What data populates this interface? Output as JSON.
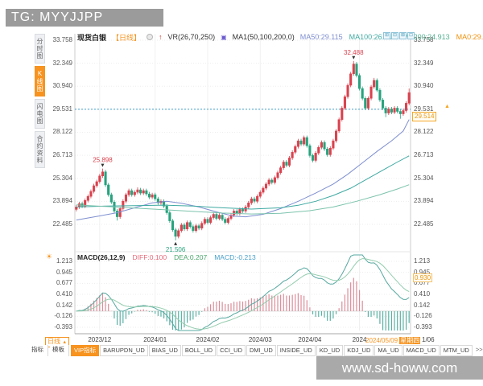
{
  "watermark_top": "TG: MYYJJPP",
  "watermark_bottom": "www.sd-howw.com",
  "sidebar": {
    "items": [
      {
        "label": "分时图",
        "active": false
      },
      {
        "label": "K线图",
        "active": true
      },
      {
        "label": "闪电图",
        "active": false
      },
      {
        "label": "合约资料",
        "active": false
      }
    ]
  },
  "header": {
    "symbol": "现货白银",
    "period": "【日线】",
    "vr_label": "VR(26,70,250)",
    "ma_group_label": "MA1(50,100,200,0)",
    "ma_values": [
      {
        "label": "MA50:29.115",
        "color": "#7e8fd0"
      },
      {
        "label": "MA100:26.715",
        "color": "#3fa9a2"
      },
      {
        "label": "MA200:24.913",
        "color": "#55b291"
      },
      {
        "label": "MA0:29.",
        "color": "#f0920f"
      }
    ]
  },
  "window_icons": [
    "⊞",
    "⊟",
    "⊠",
    "⊡"
  ],
  "price_panel": {
    "axis_labels": [
      "33.758",
      "32.349",
      "30.940",
      "29.531",
      "28.122",
      "26.713",
      "25.304",
      "23.894",
      "22.485"
    ],
    "axis_max": 33.758,
    "axis_min": 22.485,
    "ref_line": 29.531,
    "price_tag": "29.514",
    "pin_icon": "▲",
    "annotations": [
      {
        "text": "25.898",
        "index": 9,
        "type": "high"
      },
      {
        "text": "21.506",
        "index": 34,
        "type": "low"
      },
      {
        "text": "32.488",
        "index": 95,
        "type": "high"
      }
    ]
  },
  "macd_panel": {
    "title": "MACD(26,12,9)",
    "diff_label": "DIFF:0.100",
    "dea_label": "DEA:0.207",
    "macd_label": "MACD:-0.213",
    "settings_icon": "☀",
    "axis_labels": [
      "1.213",
      "0.945",
      "0.677",
      "0.410",
      "0.142",
      "-0.126",
      "-0.393"
    ],
    "axis_max": 1.213,
    "axis_min": -0.393,
    "value_tag": "0.930"
  },
  "xaxis": {
    "cursor_date": "2024/05/09",
    "cursor_weekday": "星期四",
    "suffix": "1/06"
  },
  "period_box": {
    "label": "日线",
    "arrow": "▲"
  },
  "bottom_tabs": [
    {
      "label": "指标",
      "style": "plain"
    },
    {
      "label": "模板",
      "style": "plain"
    },
    {
      "label": "VIP指标",
      "style": "active"
    },
    {
      "label": "BARUPDN_UD",
      "style": "cell"
    },
    {
      "label": "BIAS_UD",
      "style": "cell"
    },
    {
      "label": "BOLL_UD",
      "style": "cell"
    },
    {
      "label": "CCI_UD",
      "style": "cell"
    },
    {
      "label": "DMI_UD",
      "style": "cell"
    },
    {
      "label": "INSIDE_UD",
      "style": "cell"
    },
    {
      "label": "KD_UD",
      "style": "cell"
    },
    {
      "label": "KDJ_UD",
      "style": "cell"
    },
    {
      "label": "MA_UD",
      "style": "cell"
    },
    {
      "label": "MACD_UD",
      "style": "cell"
    },
    {
      "label": "MTM_UD",
      "style": "cell"
    },
    {
      "label": ">>",
      "style": "more"
    }
  ],
  "colors": {
    "accent": "#f7931e",
    "up": "#d9424e",
    "down": "#27a27d",
    "ma50": "#7e8fd0",
    "ma100": "#3fa9a2",
    "ma200": "#7cc3ad",
    "ref_line": "#3e9dc8",
    "grid": "#ededed",
    "diff_line": "#57a8a0",
    "dea_line": "#93ccae",
    "hist_pos": "#dc8d99",
    "hist_neg": "#5bb1a4",
    "tag_orange": "#f5a623"
  },
  "chart_data": {
    "type": "candlestick",
    "title": "现货白银 日线",
    "price_range": [
      22.485,
      33.758
    ],
    "months": [
      {
        "label": "2023/12",
        "index": 8
      },
      {
        "label": "2024/01",
        "index": 27
      },
      {
        "label": "2024/02",
        "index": 45
      },
      {
        "label": "2024/03",
        "index": 63
      },
      {
        "label": "2024/04",
        "index": 80
      },
      {
        "label": "2024",
        "index": 97
      }
    ],
    "candles": [
      [
        23.4,
        23.67,
        23.28,
        23.55
      ],
      [
        23.55,
        23.87,
        23.43,
        23.75
      ],
      [
        23.75,
        23.87,
        23.48,
        23.6
      ],
      [
        23.6,
        24.07,
        23.48,
        23.95
      ],
      [
        23.95,
        24.32,
        23.83,
        24.2
      ],
      [
        24.2,
        24.62,
        24.08,
        24.5
      ],
      [
        24.5,
        24.97,
        24.38,
        24.85
      ],
      [
        24.85,
        25.22,
        24.73,
        25.1
      ],
      [
        25.1,
        25.57,
        24.98,
        25.45
      ],
      [
        25.45,
        25.898,
        25.33,
        25.7
      ],
      [
        25.7,
        25.82,
        24.78,
        24.9
      ],
      [
        24.9,
        25.02,
        24.18,
        24.3
      ],
      [
        24.3,
        24.42,
        23.73,
        23.85
      ],
      [
        23.85,
        23.97,
        23.18,
        23.3
      ],
      [
        23.3,
        23.42,
        22.72,
        22.95
      ],
      [
        22.95,
        23.57,
        22.83,
        23.45
      ],
      [
        23.45,
        24.02,
        23.33,
        23.9
      ],
      [
        23.9,
        24.42,
        23.78,
        24.3
      ],
      [
        24.3,
        24.67,
        24.18,
        24.55
      ],
      [
        24.55,
        24.67,
        24.18,
        24.3
      ],
      [
        24.3,
        24.57,
        24.18,
        24.45
      ],
      [
        24.45,
        24.75,
        24.33,
        24.6
      ],
      [
        24.6,
        24.72,
        24.28,
        24.4
      ],
      [
        24.4,
        24.67,
        24.28,
        24.55
      ],
      [
        24.55,
        24.67,
        24.23,
        24.35
      ],
      [
        24.35,
        24.47,
        24.03,
        24.15
      ],
      [
        24.15,
        24.42,
        24.03,
        24.3
      ],
      [
        24.3,
        24.42,
        23.93,
        24.05
      ],
      [
        24.05,
        24.17,
        23.68,
        23.8
      ],
      [
        23.8,
        24.02,
        23.68,
        23.9
      ],
      [
        23.9,
        24.02,
        23.48,
        23.6
      ],
      [
        23.6,
        23.72,
        23.08,
        23.2
      ],
      [
        23.2,
        23.32,
        22.58,
        22.7
      ],
      [
        22.7,
        22.82,
        22.03,
        22.15
      ],
      [
        22.15,
        22.27,
        21.506,
        21.75
      ],
      [
        21.75,
        22.22,
        21.63,
        22.1
      ],
      [
        22.1,
        22.57,
        21.98,
        22.45
      ],
      [
        22.45,
        22.57,
        22.08,
        22.2
      ],
      [
        22.2,
        22.72,
        22.08,
        22.6
      ],
      [
        22.6,
        22.72,
        22.23,
        22.35
      ],
      [
        22.35,
        22.47,
        21.98,
        22.1
      ],
      [
        22.1,
        22.52,
        21.98,
        22.4
      ],
      [
        22.4,
        22.52,
        22.13,
        22.25
      ],
      [
        22.25,
        22.67,
        22.13,
        22.55
      ],
      [
        22.55,
        22.92,
        22.43,
        22.8
      ],
      [
        22.8,
        22.92,
        22.48,
        22.6
      ],
      [
        22.6,
        23.02,
        22.48,
        22.9
      ],
      [
        22.9,
        23.22,
        22.78,
        23.1
      ],
      [
        23.1,
        23.22,
        22.73,
        22.85
      ],
      [
        22.85,
        23.17,
        22.73,
        23.05
      ],
      [
        23.05,
        23.17,
        22.68,
        22.8
      ],
      [
        22.8,
        22.92,
        22.48,
        22.6
      ],
      [
        22.6,
        22.97,
        22.48,
        22.85
      ],
      [
        22.85,
        23.17,
        22.73,
        23.05
      ],
      [
        23.05,
        23.42,
        22.93,
        23.3
      ],
      [
        23.3,
        23.42,
        23.03,
        23.15
      ],
      [
        23.15,
        23.52,
        23.03,
        23.4
      ],
      [
        23.4,
        23.52,
        23.18,
        23.3
      ],
      [
        23.3,
        23.67,
        23.18,
        23.55
      ],
      [
        23.55,
        23.92,
        23.43,
        23.8
      ],
      [
        23.8,
        24.17,
        23.68,
        24.05
      ],
      [
        24.05,
        24.17,
        23.78,
        23.9
      ],
      [
        23.9,
        24.32,
        23.78,
        24.2
      ],
      [
        24.2,
        24.57,
        24.08,
        24.45
      ],
      [
        24.45,
        24.82,
        24.33,
        24.7
      ],
      [
        24.7,
        25.07,
        24.58,
        24.95
      ],
      [
        24.95,
        25.32,
        24.83,
        25.2
      ],
      [
        25.2,
        25.32,
        24.93,
        25.05
      ],
      [
        25.05,
        25.47,
        24.93,
        25.35
      ],
      [
        25.35,
        25.77,
        25.23,
        25.65
      ],
      [
        25.65,
        26.07,
        25.53,
        25.95
      ],
      [
        25.95,
        26.42,
        25.83,
        26.3
      ],
      [
        26.3,
        26.42,
        25.98,
        26.1
      ],
      [
        26.1,
        26.67,
        25.98,
        26.55
      ],
      [
        26.55,
        27.02,
        26.43,
        26.9
      ],
      [
        26.9,
        27.37,
        26.78,
        27.25
      ],
      [
        27.25,
        27.72,
        27.13,
        27.6
      ],
      [
        27.6,
        27.72,
        27.28,
        27.4
      ],
      [
        27.4,
        27.92,
        27.28,
        27.8
      ],
      [
        27.8,
        27.92,
        27.18,
        27.3
      ],
      [
        27.3,
        27.42,
        26.58,
        26.7
      ],
      [
        26.7,
        26.82,
        26.28,
        26.4
      ],
      [
        26.4,
        26.97,
        26.28,
        26.85
      ],
      [
        26.85,
        27.32,
        26.73,
        27.2
      ],
      [
        27.2,
        27.62,
        27.08,
        27.5
      ],
      [
        27.5,
        27.62,
        26.98,
        27.1
      ],
      [
        27.1,
        27.22,
        26.63,
        26.75
      ],
      [
        26.75,
        27.27,
        26.63,
        27.15
      ],
      [
        27.15,
        27.72,
        27.03,
        27.6
      ],
      [
        27.6,
        28.32,
        27.48,
        28.2
      ],
      [
        28.2,
        29.02,
        28.08,
        28.9
      ],
      [
        28.9,
        29.72,
        28.78,
        29.6
      ],
      [
        29.6,
        30.42,
        29.48,
        30.3
      ],
      [
        30.3,
        31.12,
        30.18,
        31.0
      ],
      [
        31.0,
        31.82,
        30.88,
        31.7
      ],
      [
        31.7,
        32.488,
        31.58,
        32.3
      ],
      [
        32.3,
        32.42,
        31.48,
        31.6
      ],
      [
        31.6,
        31.72,
        30.68,
        30.8
      ],
      [
        30.8,
        30.92,
        30.08,
        30.2
      ],
      [
        30.2,
        30.32,
        29.48,
        29.6
      ],
      [
        29.6,
        30.32,
        29.48,
        30.2
      ],
      [
        30.2,
        31.02,
        30.08,
        30.9
      ],
      [
        30.9,
        31.45,
        30.78,
        31.3
      ],
      [
        31.3,
        31.42,
        30.58,
        30.7
      ],
      [
        30.7,
        30.82,
        29.98,
        30.1
      ],
      [
        30.1,
        30.22,
        29.48,
        29.6
      ],
      [
        29.6,
        29.72,
        29.05,
        29.3
      ],
      [
        29.3,
        29.67,
        29.18,
        29.55
      ],
      [
        29.55,
        29.67,
        29.23,
        29.35
      ],
      [
        29.35,
        29.72,
        29.23,
        29.6
      ],
      [
        29.6,
        29.72,
        29.28,
        29.4
      ],
      [
        29.4,
        29.52,
        28.95,
        29.25
      ],
      [
        29.25,
        29.57,
        29.13,
        29.45
      ],
      [
        29.45,
        30.02,
        29.33,
        29.9
      ],
      [
        29.9,
        30.8,
        29.78,
        30.55
      ]
    ],
    "mas": {
      "ma50": [
        [
          0,
          22.75
        ],
        [
          8,
          23.0
        ],
        [
          14,
          23.2
        ],
        [
          20,
          23.5
        ],
        [
          26,
          23.8
        ],
        [
          31,
          23.9
        ],
        [
          36,
          23.78
        ],
        [
          42,
          23.55
        ],
        [
          48,
          23.25
        ],
        [
          54,
          22.98
        ],
        [
          58,
          22.95
        ],
        [
          64,
          23.1
        ],
        [
          70,
          23.45
        ],
        [
          76,
          23.9
        ],
        [
          82,
          24.4
        ],
        [
          88,
          24.95
        ],
        [
          93,
          25.55
        ],
        [
          98,
          26.25
        ],
        [
          103,
          26.95
        ],
        [
          108,
          27.6
        ],
        [
          112,
          28.2
        ],
        [
          114,
          28.9
        ]
      ],
      "ma100": [
        [
          0,
          23.55
        ],
        [
          10,
          23.6
        ],
        [
          20,
          23.63
        ],
        [
          30,
          23.66
        ],
        [
          40,
          23.6
        ],
        [
          50,
          23.5
        ],
        [
          60,
          23.42
        ],
        [
          70,
          23.5
        ],
        [
          76,
          23.65
        ],
        [
          82,
          23.9
        ],
        [
          88,
          24.25
        ],
        [
          94,
          24.7
        ],
        [
          100,
          25.3
        ],
        [
          106,
          25.9
        ],
        [
          110,
          26.3
        ],
        [
          114,
          26.68
        ]
      ],
      "ma200": [
        [
          0,
          23.68
        ],
        [
          10,
          23.58
        ],
        [
          20,
          23.48
        ],
        [
          30,
          23.38
        ],
        [
          40,
          23.28
        ],
        [
          50,
          23.18
        ],
        [
          60,
          23.12
        ],
        [
          70,
          23.16
        ],
        [
          80,
          23.32
        ],
        [
          88,
          23.55
        ],
        [
          96,
          23.9
        ],
        [
          104,
          24.3
        ],
        [
          110,
          24.65
        ],
        [
          114,
          24.91
        ]
      ]
    },
    "macd": {
      "params": [
        26,
        12,
        9
      ],
      "bar_formula": "2*(DIFF-DEA)"
    }
  }
}
